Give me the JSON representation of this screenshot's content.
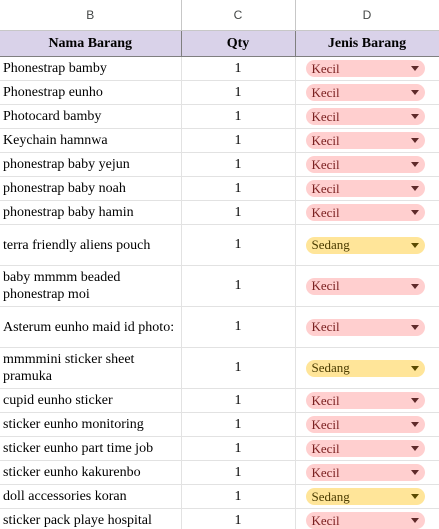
{
  "columns": {
    "b": "B",
    "c": "C",
    "d": "D"
  },
  "headers": {
    "name": "Nama Barang",
    "qty": "Qty",
    "jenis": "Jenis Barang"
  },
  "rows": [
    {
      "name": "Phonestrap bamby",
      "qty": "1",
      "jenis": "Kecil",
      "tall": false,
      "group_start": false
    },
    {
      "name": "Phonestrap eunho",
      "qty": "1",
      "jenis": "Kecil",
      "tall": false,
      "group_start": false
    },
    {
      "name": "Photocard bamby",
      "qty": "1",
      "jenis": "Kecil",
      "tall": false,
      "group_start": false
    },
    {
      "name": "Keychain hamnwa",
      "qty": "1",
      "jenis": "Kecil",
      "tall": false,
      "group_start": true
    },
    {
      "name": "phonestrap baby yejun",
      "qty": "1",
      "jenis": "Kecil",
      "tall": false,
      "group_start": false
    },
    {
      "name": "phonestrap baby noah",
      "qty": "1",
      "jenis": "Kecil",
      "tall": false,
      "group_start": false
    },
    {
      "name": "phonestrap baby hamin",
      "qty": "1",
      "jenis": "Kecil",
      "tall": false,
      "group_start": false
    },
    {
      "name": "terra friendly aliens pouch",
      "qty": "1",
      "jenis": "Sedang",
      "tall": true,
      "group_start": false
    },
    {
      "name": "baby mmmm beaded phonestrap moi",
      "qty": "1",
      "jenis": "Kecil",
      "tall": true,
      "group_start": false
    },
    {
      "name": " Asterum eunho maid id photo:",
      "qty": "1",
      "jenis": "Kecil",
      "tall": true,
      "group_start": true
    },
    {
      "name": "mmmmini sticker sheet pramuka",
      "qty": "1",
      "jenis": "Sedang",
      "tall": true,
      "group_start": false
    },
    {
      "name": "cupid eunho sticker",
      "qty": "1",
      "jenis": "Kecil",
      "tall": false,
      "group_start": false
    },
    {
      "name": "sticker eunho monitoring",
      "qty": "1",
      "jenis": "Kecil",
      "tall": false,
      "group_start": false
    },
    {
      "name": "sticker eunho part time job",
      "qty": "1",
      "jenis": "Kecil",
      "tall": false,
      "group_start": false
    },
    {
      "name": "sticker eunho kakurenbo",
      "qty": "1",
      "jenis": "Kecil",
      "tall": false,
      "group_start": false
    },
    {
      "name": "doll accessories koran",
      "qty": "1",
      "jenis": "Sedang",
      "tall": false,
      "group_start": false
    },
    {
      "name": "sticker pack playe hospital",
      "qty": "1",
      "jenis": "Kecil",
      "tall": false,
      "group_start": false
    }
  ],
  "colors": {
    "kecil": "#ffcfcf",
    "sedang": "#ffe599",
    "header": "#d9d2e9"
  },
  "icons": {
    "dropdown": "chevron-down-icon"
  }
}
